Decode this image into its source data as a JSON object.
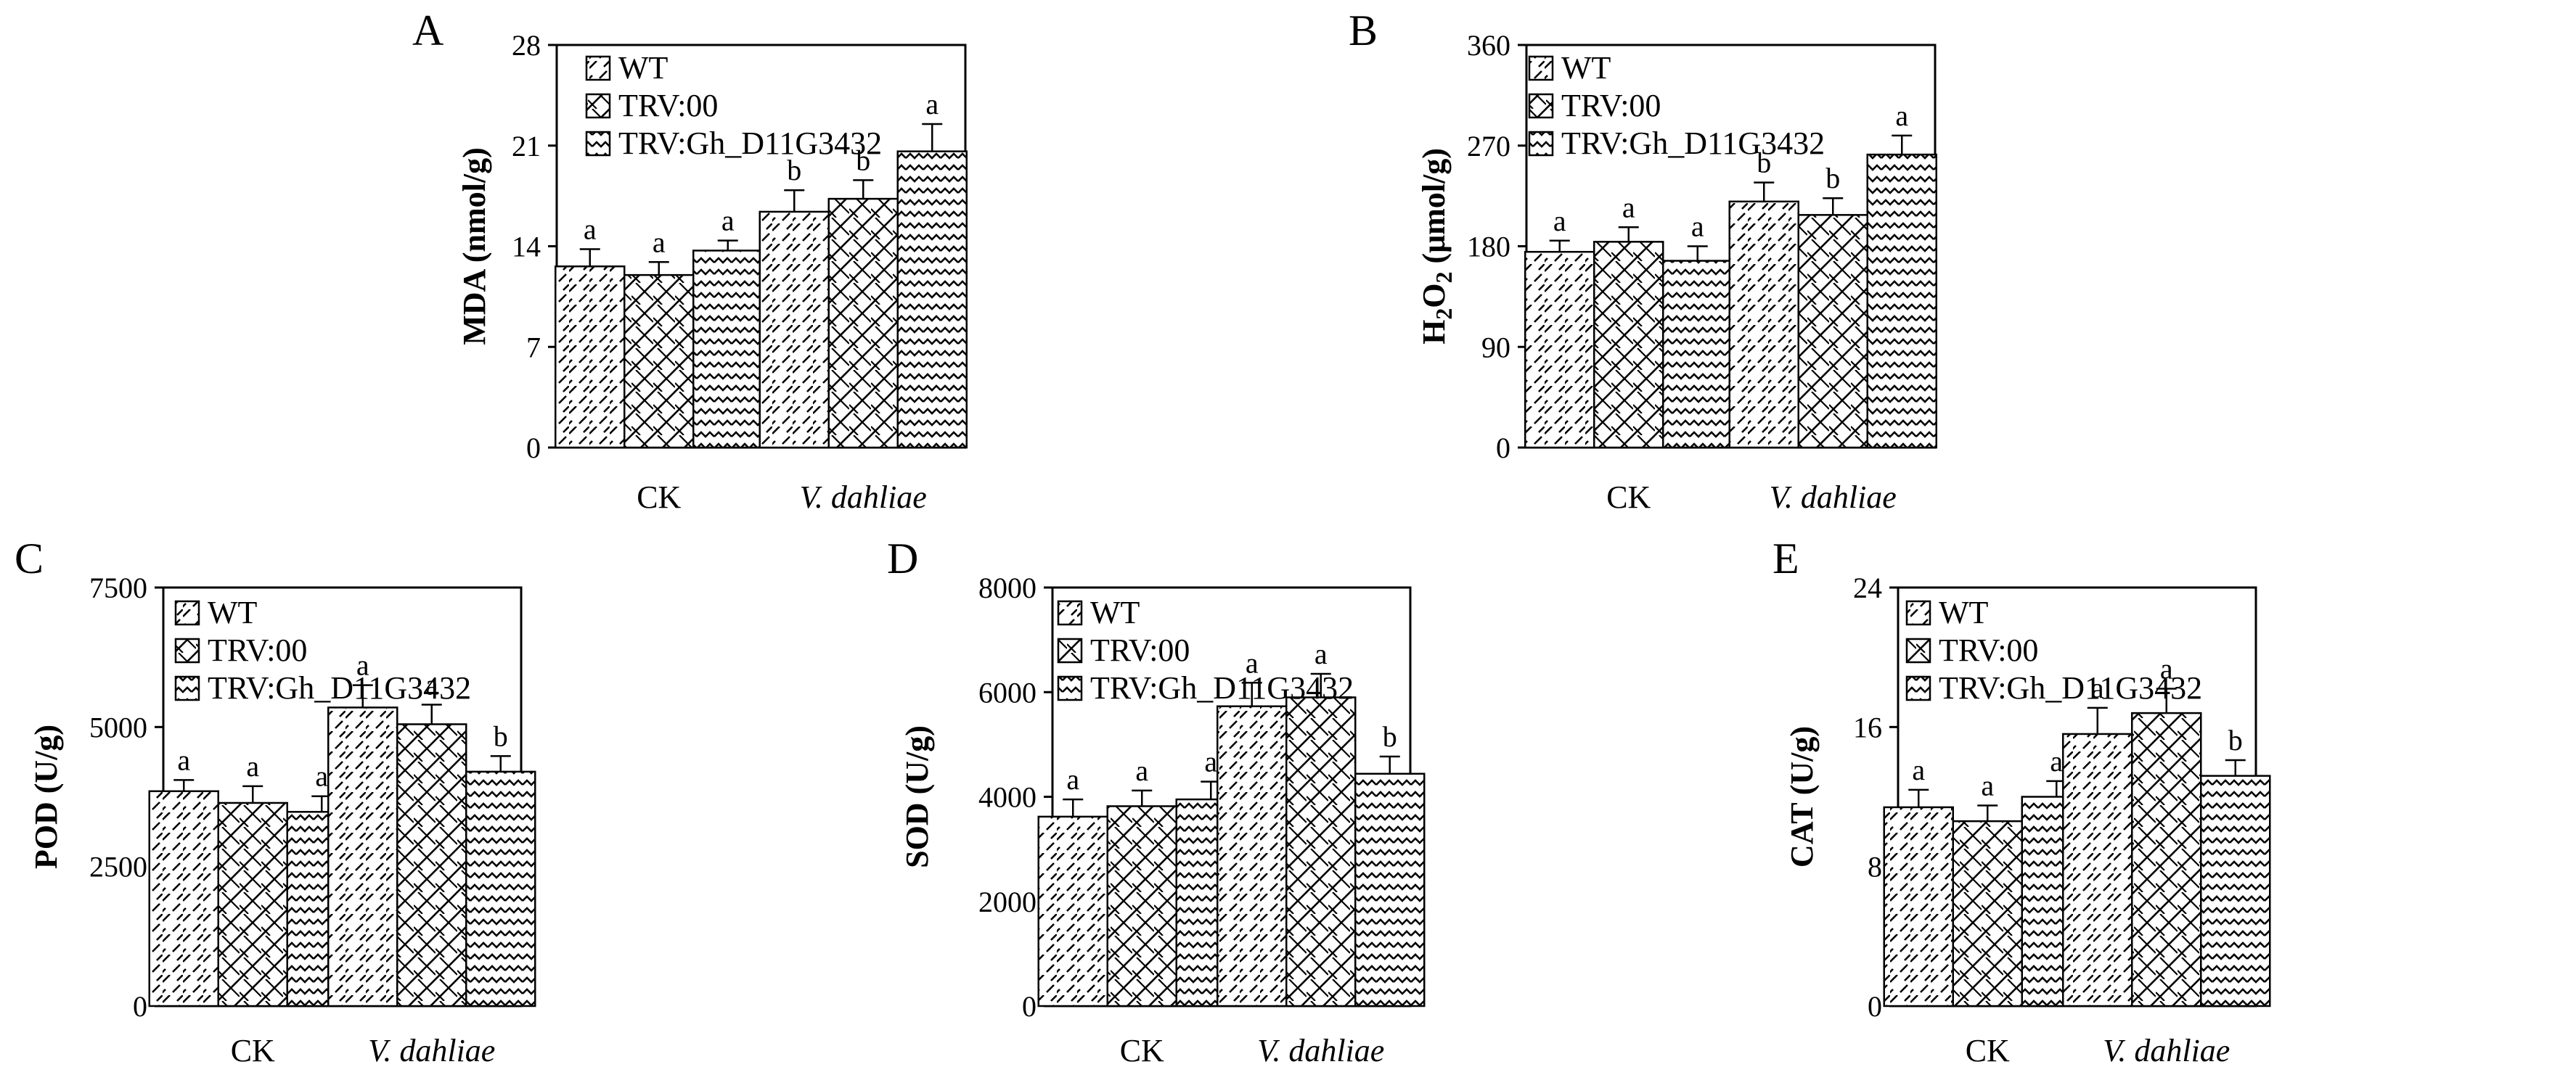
{
  "figure": {
    "legend": [
      "WT",
      "TRV:00",
      "TRV:Gh_D11G3432"
    ],
    "categories": [
      "CK",
      "V. dahliae"
    ]
  },
  "chart_data": [
    {
      "type": "bar",
      "panel": "A",
      "ylabel": "MDA (nmol/g)",
      "ylim": [
        0,
        28
      ],
      "yticks": [
        "0",
        "7",
        "14",
        "21",
        "28"
      ],
      "categories": [
        "CK",
        "V. dahliae"
      ],
      "series": [
        {
          "name": "WT",
          "values": [
            12.6,
            16.4
          ],
          "errors": [
            1.2,
            1.5
          ],
          "sig": [
            "a",
            "b"
          ]
        },
        {
          "name": "TRV:00",
          "values": [
            12.0,
            17.3
          ],
          "errors": [
            0.9,
            1.3
          ],
          "sig": [
            "a",
            "b"
          ]
        },
        {
          "name": "TRV:Gh_D11G3432",
          "values": [
            13.7,
            20.6
          ],
          "errors": [
            0.7,
            1.9
          ],
          "sig": [
            "a",
            "a"
          ]
        }
      ]
    },
    {
      "type": "bar",
      "panel": "B",
      "ylabel_main": "H",
      "ylabel_sub": "2",
      "ylabel_mid": "O",
      "ylabel_sub2": "2",
      "ylabel_rest": " (μmol/g)",
      "ylim": [
        0,
        360
      ],
      "yticks": [
        "0",
        "90",
        "180",
        "270",
        "360"
      ],
      "categories": [
        "CK",
        "V. dahliae"
      ],
      "series": [
        {
          "name": "WT",
          "values": [
            175,
            220
          ],
          "errors": [
            10,
            17
          ],
          "sig": [
            "a",
            "b"
          ]
        },
        {
          "name": "TRV:00",
          "values": [
            184,
            208
          ],
          "errors": [
            13,
            15
          ],
          "sig": [
            "a",
            "b"
          ]
        },
        {
          "name": "TRV:Gh_D11G3432",
          "values": [
            167,
            262
          ],
          "errors": [
            13,
            17
          ],
          "sig": [
            "a",
            "a"
          ]
        }
      ]
    },
    {
      "type": "bar",
      "panel": "C",
      "ylabel": "POD (U/g)",
      "ylim": [
        0,
        7500
      ],
      "yticks": [
        "0",
        "2500",
        "5000",
        "7500"
      ],
      "categories": [
        "CK",
        "V. dahliae"
      ],
      "series": [
        {
          "name": "WT",
          "values": [
            3850,
            5350
          ],
          "errors": [
            200,
            400
          ],
          "sig": [
            "a",
            "a"
          ]
        },
        {
          "name": "TRV:00",
          "values": [
            3640,
            5050
          ],
          "errors": [
            300,
            350
          ],
          "sig": [
            "a",
            "a"
          ]
        },
        {
          "name": "TRV:Gh_D11G3432",
          "values": [
            3480,
            4200
          ],
          "errors": [
            280,
            280
          ],
          "sig": [
            "a",
            "b"
          ]
        }
      ]
    },
    {
      "type": "bar",
      "panel": "D",
      "ylabel": "SOD (U/g)",
      "ylim": [
        0,
        8000
      ],
      "yticks": [
        "0",
        "2000",
        "4000",
        "6000",
        "8000"
      ],
      "categories": [
        "CK",
        "V. dahliae"
      ],
      "series": [
        {
          "name": "WT",
          "values": [
            3620,
            5730
          ],
          "errors": [
            330,
            450
          ],
          "sig": [
            "a",
            "a"
          ]
        },
        {
          "name": "TRV:00",
          "values": [
            3820,
            5900
          ],
          "errors": [
            300,
            450
          ],
          "sig": [
            "a",
            "a"
          ]
        },
        {
          "name": "TRV:Gh_D11G3432",
          "values": [
            3950,
            4440
          ],
          "errors": [
            340,
            330
          ],
          "sig": [
            "a",
            "b"
          ]
        }
      ]
    },
    {
      "type": "bar",
      "panel": "E",
      "ylabel": "CAT (U/g)",
      "ylim": [
        0,
        24
      ],
      "yticks": [
        "0",
        "8",
        "16",
        "24"
      ],
      "categories": [
        "CK",
        "V. dahliae"
      ],
      "series": [
        {
          "name": "WT",
          "values": [
            11.4,
            15.6
          ],
          "errors": [
            1.0,
            1.5
          ],
          "sig": [
            "a",
            "a"
          ]
        },
        {
          "name": "TRV:00",
          "values": [
            10.6,
            16.8
          ],
          "errors": [
            0.9,
            1.4
          ],
          "sig": [
            "a",
            "a"
          ]
        },
        {
          "name": "TRV:Gh_D11G3432",
          "values": [
            12.0,
            13.2
          ],
          "errors": [
            0.9,
            0.9
          ],
          "sig": [
            "a",
            "b"
          ]
        }
      ]
    }
  ]
}
